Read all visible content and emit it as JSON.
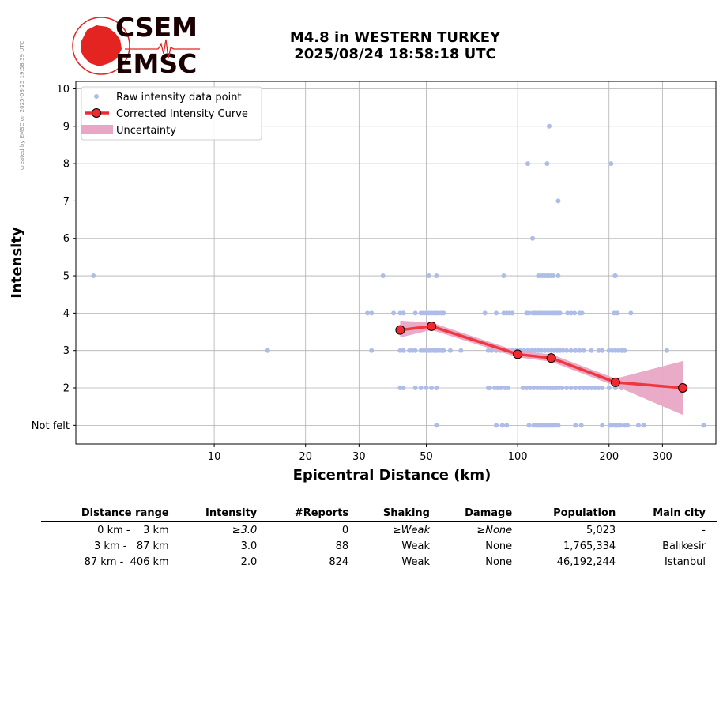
{
  "side_note": "created by EMSC on 2025-08-25 19:58:39 UTC",
  "logo": {
    "top": "CSEM",
    "bottom": "EMSC",
    "color": "#e32420"
  },
  "title": {
    "line1": "M4.8 in WESTERN TURKEY",
    "line2": "2025/08/24 18:58:18 UTC"
  },
  "chart_data": {
    "type": "scatter",
    "xlabel": "Epicentral Distance (km)",
    "ylabel": "Intensity",
    "x_scale": "log",
    "xlim": [
      3.5,
      450
    ],
    "ylim": [
      0.5,
      10.2
    ],
    "x_ticks": [
      10,
      20,
      30,
      50,
      100,
      200,
      300
    ],
    "y_ticks": [
      {
        "value": 1,
        "label": "Not felt"
      },
      {
        "value": 2,
        "label": "2"
      },
      {
        "value": 3,
        "label": "3"
      },
      {
        "value": 4,
        "label": "4"
      },
      {
        "value": 5,
        "label": "5"
      },
      {
        "value": 6,
        "label": "6"
      },
      {
        "value": 7,
        "label": "7"
      },
      {
        "value": 8,
        "label": "8"
      },
      {
        "value": 9,
        "label": "9"
      },
      {
        "value": 10,
        "label": "10"
      }
    ],
    "grid": true,
    "legend_position": "top-left",
    "legend": [
      "Raw intensity data point",
      "Corrected Intensity Curve",
      "Uncertainty"
    ],
    "colors": {
      "raw": "#aebde8",
      "curve": "#ee2a30",
      "marker": "#ee2a30",
      "uncertainty": "#e8a7c4"
    },
    "raw_points": [
      {
        "intensity": 10,
        "distances": []
      },
      {
        "intensity": 9,
        "distances": [
          127
        ]
      },
      {
        "intensity": 8,
        "distances": [
          108,
          125,
          203
        ]
      },
      {
        "intensity": 7,
        "distances": [
          136
        ]
      },
      {
        "intensity": 6,
        "distances": [
          112
        ]
      },
      {
        "intensity": 5,
        "distances": [
          4,
          36,
          51,
          54,
          90,
          117,
          119,
          121,
          123,
          125,
          127,
          129,
          131,
          136,
          209,
          210
        ]
      },
      {
        "intensity": 4,
        "distances": [
          32,
          33,
          39,
          41,
          42,
          46,
          48,
          49,
          50,
          51,
          52,
          53,
          54,
          55,
          56,
          57,
          78,
          85,
          90,
          92,
          94,
          96,
          107,
          109,
          112,
          114,
          116,
          118,
          120,
          122,
          124,
          126,
          128,
          130,
          132,
          134,
          136,
          138,
          146,
          150,
          154,
          160,
          163,
          208,
          213,
          236
        ]
      },
      {
        "intensity": 3,
        "distances": [
          15,
          33,
          41,
          42,
          44,
          45,
          46,
          48,
          49,
          50,
          51,
          52,
          53,
          54,
          55,
          56,
          57,
          60,
          65,
          80,
          82,
          85,
          88,
          90,
          93,
          96,
          99,
          102,
          105,
          108,
          111,
          114,
          117,
          120,
          123,
          126,
          129,
          132,
          135,
          138,
          141,
          145,
          150,
          155,
          160,
          165,
          175,
          185,
          190,
          200,
          205,
          210,
          215,
          220,
          225,
          310
        ]
      },
      {
        "intensity": 2,
        "distances": [
          41,
          42,
          46,
          48,
          50,
          52,
          54,
          80,
          81,
          84,
          86,
          88,
          91,
          93,
          104,
          107,
          110,
          113,
          116,
          119,
          122,
          125,
          128,
          131,
          134,
          137,
          140,
          145,
          150,
          155,
          160,
          165,
          170,
          175,
          180,
          185,
          190,
          200,
          210,
          220,
          230,
          250
        ]
      },
      {
        "intensity": 1,
        "distances": [
          54,
          85,
          89,
          92,
          109,
          113,
          115,
          117,
          119,
          121,
          123,
          125,
          127,
          129,
          131,
          133,
          136,
          155,
          162,
          190,
          202,
          205,
          209,
          212,
          215,
          218,
          225,
          230,
          250,
          260,
          410
        ]
      }
    ],
    "curve": {
      "x": [
        41,
        52,
        100,
        129,
        210,
        350
      ],
      "y": [
        3.55,
        3.65,
        2.9,
        2.8,
        2.15,
        2.0
      ]
    },
    "uncertainty": {
      "x": [
        41,
        52,
        100,
        129,
        210,
        350
      ],
      "upper": [
        3.8,
        3.75,
        2.98,
        2.9,
        2.25,
        2.72
      ],
      "lower": [
        3.35,
        3.55,
        2.82,
        2.7,
        2.05,
        1.28
      ]
    }
  },
  "table": {
    "headers": [
      "Distance range",
      "Intensity",
      "#Reports",
      "Shaking",
      "Damage",
      "Population",
      "Main city"
    ],
    "rows": [
      {
        "range": "0 km -    3 km",
        "intensity": "≥3.0",
        "reports": "0",
        "shaking": "≥Weak",
        "damage": "≥None",
        "population": "5,023",
        "city": "-",
        "italic": true
      },
      {
        "range": "3 km -   87 km",
        "intensity": "3.0",
        "reports": "88",
        "shaking": "Weak",
        "damage": "None",
        "population": "1,765,334",
        "city": "Balıkesir",
        "italic": false
      },
      {
        "range": "87 km -  406 km",
        "intensity": "2.0",
        "reports": "824",
        "shaking": "Weak",
        "damage": "None",
        "population": "46,192,244",
        "city": "Istanbul",
        "italic": false
      }
    ]
  }
}
